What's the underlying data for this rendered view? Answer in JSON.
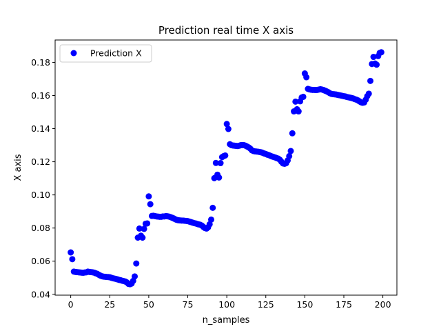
{
  "chart_data": {
    "type": "scatter",
    "title": "Prediction real time X axis",
    "xlabel": "n_samples",
    "ylabel": "X axis",
    "xlim": [
      -10,
      209
    ],
    "ylim": [
      0.0395,
      0.1935
    ],
    "xticks": [
      0,
      25,
      50,
      75,
      100,
      125,
      150,
      175,
      200
    ],
    "yticks": [
      0.04,
      0.06,
      0.08,
      0.1,
      0.12,
      0.14,
      0.16,
      0.18
    ],
    "ytick_labels": [
      "0.04",
      "0.06",
      "0.08",
      "0.10",
      "0.12",
      "0.14",
      "0.16",
      "0.18"
    ],
    "grid": false,
    "legend": "top-left",
    "series": [
      {
        "name": "Prediction X",
        "color": "#0000ff",
        "marker": "circle",
        "points": [
          [
            0,
            0.0653
          ],
          [
            1,
            0.0612
          ],
          [
            2,
            0.0537
          ],
          [
            3,
            0.0535
          ],
          [
            4,
            0.0534
          ],
          [
            5,
            0.0533
          ],
          [
            6,
            0.0532
          ],
          [
            7,
            0.0531
          ],
          [
            8,
            0.053
          ],
          [
            9,
            0.0532
          ],
          [
            10,
            0.0533
          ],
          [
            11,
            0.0537
          ],
          [
            12,
            0.0535
          ],
          [
            13,
            0.0534
          ],
          [
            14,
            0.0533
          ],
          [
            15,
            0.0531
          ],
          [
            16,
            0.0527
          ],
          [
            17,
            0.0524
          ],
          [
            18,
            0.0518
          ],
          [
            19,
            0.0513
          ],
          [
            20,
            0.0509
          ],
          [
            21,
            0.0507
          ],
          [
            22,
            0.0506
          ],
          [
            23,
            0.0505
          ],
          [
            24,
            0.0504
          ],
          [
            25,
            0.0503
          ],
          [
            26,
            0.05
          ],
          [
            27,
            0.0497
          ],
          [
            28,
            0.0495
          ],
          [
            29,
            0.0493
          ],
          [
            30,
            0.049
          ],
          [
            31,
            0.0487
          ],
          [
            32,
            0.0485
          ],
          [
            33,
            0.0482
          ],
          [
            34,
            0.048
          ],
          [
            35,
            0.0477
          ],
          [
            36,
            0.0472
          ],
          [
            37,
            0.0463
          ],
          [
            38,
            0.0461
          ],
          [
            39,
            0.0465
          ],
          [
            40,
            0.0481
          ],
          [
            41,
            0.0508
          ],
          [
            42,
            0.0586
          ],
          [
            43,
            0.0742
          ],
          [
            44,
            0.0797
          ],
          [
            45,
            0.0754
          ],
          [
            46,
            0.0742
          ],
          [
            47,
            0.0795
          ],
          [
            48,
            0.0826
          ],
          [
            49,
            0.0828
          ],
          [
            50,
            0.0991
          ],
          [
            51,
            0.0944
          ],
          [
            52,
            0.0873
          ],
          [
            53,
            0.0874
          ],
          [
            54,
            0.0872
          ],
          [
            55,
            0.087
          ],
          [
            56,
            0.0869
          ],
          [
            57,
            0.0868
          ],
          [
            58,
            0.0868
          ],
          [
            59,
            0.087
          ],
          [
            60,
            0.087
          ],
          [
            61,
            0.0872
          ],
          [
            62,
            0.0871
          ],
          [
            63,
            0.0869
          ],
          [
            64,
            0.0866
          ],
          [
            65,
            0.0862
          ],
          [
            66,
            0.0858
          ],
          [
            67,
            0.0853
          ],
          [
            68,
            0.0849
          ],
          [
            69,
            0.0847
          ],
          [
            70,
            0.0846
          ],
          [
            71,
            0.0845
          ],
          [
            72,
            0.0845
          ],
          [
            73,
            0.0844
          ],
          [
            74,
            0.0843
          ],
          [
            75,
            0.0842
          ],
          [
            76,
            0.0839
          ],
          [
            77,
            0.0836
          ],
          [
            78,
            0.0833
          ],
          [
            79,
            0.083
          ],
          [
            80,
            0.0828
          ],
          [
            81,
            0.0825
          ],
          [
            82,
            0.0822
          ],
          [
            83,
            0.082
          ],
          [
            84,
            0.0815
          ],
          [
            85,
            0.0807
          ],
          [
            86,
            0.08
          ],
          [
            87,
            0.0797
          ],
          [
            88,
            0.0804
          ],
          [
            89,
            0.0823
          ],
          [
            90,
            0.0851
          ],
          [
            91,
            0.0922
          ],
          [
            92,
            0.1101
          ],
          [
            93,
            0.1193
          ],
          [
            94,
            0.1122
          ],
          [
            95,
            0.1105
          ],
          [
            96,
            0.1192
          ],
          [
            97,
            0.1228
          ],
          [
            98,
            0.1234
          ],
          [
            99,
            0.1238
          ],
          [
            100,
            0.1428
          ],
          [
            101,
            0.1398
          ],
          [
            102,
            0.1306
          ],
          [
            103,
            0.13
          ],
          [
            104,
            0.1298
          ],
          [
            105,
            0.1297
          ],
          [
            106,
            0.1296
          ],
          [
            107,
            0.1295
          ],
          [
            108,
            0.1297
          ],
          [
            109,
            0.13
          ],
          [
            110,
            0.1301
          ],
          [
            111,
            0.13
          ],
          [
            112,
            0.1297
          ],
          [
            113,
            0.1292
          ],
          [
            114,
            0.1287
          ],
          [
            115,
            0.128
          ],
          [
            116,
            0.127
          ],
          [
            117,
            0.1265
          ],
          [
            118,
            0.1263
          ],
          [
            119,
            0.1262
          ],
          [
            120,
            0.1261
          ],
          [
            121,
            0.1259
          ],
          [
            122,
            0.1257
          ],
          [
            123,
            0.1254
          ],
          [
            124,
            0.125
          ],
          [
            125,
            0.1247
          ],
          [
            126,
            0.1243
          ],
          [
            127,
            0.124
          ],
          [
            128,
            0.1236
          ],
          [
            129,
            0.1232
          ],
          [
            130,
            0.1229
          ],
          [
            131,
            0.1226
          ],
          [
            132,
            0.1222
          ],
          [
            133,
            0.1219
          ],
          [
            134,
            0.1212
          ],
          [
            135,
            0.12
          ],
          [
            136,
            0.119
          ],
          [
            137,
            0.1188
          ],
          [
            138,
            0.1191
          ],
          [
            139,
            0.1208
          ],
          [
            140,
            0.1234
          ],
          [
            141,
            0.1265
          ],
          [
            142,
            0.1372
          ],
          [
            143,
            0.1504
          ],
          [
            144,
            0.1563
          ],
          [
            145,
            0.1517
          ],
          [
            146,
            0.1504
          ],
          [
            147,
            0.1565
          ],
          [
            148,
            0.1588
          ],
          [
            149,
            0.1592
          ],
          [
            150,
            0.1733
          ],
          [
            151,
            0.171
          ],
          [
            152,
            0.164
          ],
          [
            153,
            0.1637
          ],
          [
            154,
            0.1635
          ],
          [
            155,
            0.1634
          ],
          [
            156,
            0.1634
          ],
          [
            157,
            0.1633
          ],
          [
            158,
            0.1634
          ],
          [
            159,
            0.1636
          ],
          [
            160,
            0.1638
          ],
          [
            161,
            0.1636
          ],
          [
            162,
            0.1633
          ],
          [
            163,
            0.1629
          ],
          [
            164,
            0.1625
          ],
          [
            165,
            0.162
          ],
          [
            166,
            0.1614
          ],
          [
            167,
            0.161
          ],
          [
            168,
            0.1608
          ],
          [
            169,
            0.1607
          ],
          [
            170,
            0.1606
          ],
          [
            171,
            0.1604
          ],
          [
            172,
            0.1602
          ],
          [
            173,
            0.16
          ],
          [
            174,
            0.1598
          ],
          [
            175,
            0.1596
          ],
          [
            176,
            0.1594
          ],
          [
            177,
            0.1591
          ],
          [
            178,
            0.1589
          ],
          [
            179,
            0.1587
          ],
          [
            180,
            0.1585
          ],
          [
            181,
            0.1582
          ],
          [
            182,
            0.1578
          ],
          [
            183,
            0.1575
          ],
          [
            184,
            0.1571
          ],
          [
            185,
            0.1565
          ],
          [
            186,
            0.1559
          ],
          [
            187,
            0.1556
          ],
          [
            188,
            0.1558
          ],
          [
            189,
            0.1574
          ],
          [
            190,
            0.1596
          ],
          [
            191,
            0.1611
          ],
          [
            192,
            0.1688
          ],
          [
            193,
            0.179
          ],
          [
            194,
            0.1833
          ],
          [
            195,
            0.1793
          ],
          [
            196,
            0.1786
          ],
          [
            197,
            0.1838
          ],
          [
            198,
            0.1857
          ],
          [
            199,
            0.1861
          ]
        ]
      }
    ]
  }
}
